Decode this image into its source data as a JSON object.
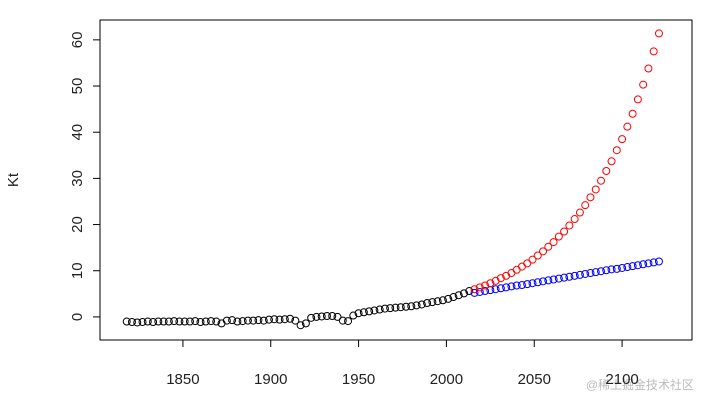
{
  "chart_data": {
    "type": "scatter",
    "y_label": "Kt",
    "xlim": [
      1802.8,
      2139.8
    ],
    "ylim": [
      -5,
      64.3
    ],
    "xticks": [
      1850,
      1900,
      1950,
      2000,
      2050,
      2100
    ],
    "yticks": [
      0,
      10,
      20,
      30,
      40,
      50,
      60
    ],
    "series": [
      {
        "color": "#000000",
        "x": [
          1818,
          1821,
          1824,
          1827,
          1830,
          1833,
          1836,
          1839,
          1842,
          1845,
          1848,
          1851,
          1854,
          1857,
          1860,
          1863,
          1866,
          1869,
          1872,
          1875,
          1878,
          1881,
          1884,
          1887,
          1890,
          1893,
          1896,
          1899,
          1902,
          1905,
          1908,
          1911,
          1914,
          1917,
          1920,
          1923,
          1926,
          1929,
          1932,
          1935,
          1938,
          1941,
          1944,
          1947,
          1950,
          1953,
          1956,
          1959,
          1962,
          1965,
          1968,
          1971,
          1974,
          1977,
          1980,
          1983,
          1986,
          1989,
          1992,
          1995,
          1998,
          2001,
          2004,
          2007,
          2010,
          2013
        ],
        "values": [
          -1.0,
          -1.1,
          -1.2,
          -1.1,
          -1.0,
          -1.1,
          -1.0,
          -1.0,
          -1.0,
          -0.9,
          -1.0,
          -1.0,
          -1.0,
          -0.9,
          -1.1,
          -1.0,
          -0.9,
          -1.0,
          -1.4,
          -0.8,
          -0.7,
          -1.0,
          -0.9,
          -0.8,
          -0.8,
          -0.7,
          -0.8,
          -0.6,
          -0.5,
          -0.6,
          -0.5,
          -0.4,
          -0.8,
          -1.8,
          -1.4,
          -0.2,
          0.0,
          0.1,
          0.2,
          0.2,
          0.0,
          -0.8,
          -0.9,
          0.3,
          0.8,
          1.0,
          1.2,
          1.4,
          1.6,
          1.8,
          1.9,
          2.0,
          2.1,
          2.2,
          2.3,
          2.5,
          2.7,
          3.0,
          3.2,
          3.4,
          3.6,
          3.9,
          4.3,
          4.7,
          5.1,
          5.6
        ]
      },
      {
        "color": "#0000ff",
        "x": [
          2016,
          2019,
          2022,
          2025,
          2028,
          2031,
          2034,
          2037,
          2040,
          2043,
          2046,
          2049,
          2052,
          2055,
          2058,
          2061,
          2064,
          2067,
          2070,
          2073,
          2076,
          2079,
          2082,
          2085,
          2088,
          2091,
          2094,
          2097,
          2100,
          2103,
          2106,
          2109,
          2112,
          2115,
          2118,
          2121
        ],
        "values": [
          5.2,
          5.4,
          5.6,
          5.8,
          6.0,
          6.2,
          6.4,
          6.6,
          6.8,
          6.9,
          7.1,
          7.3,
          7.5,
          7.7,
          7.9,
          8.1,
          8.3,
          8.5,
          8.7,
          8.9,
          9.1,
          9.3,
          9.5,
          9.7,
          9.9,
          10.1,
          10.3,
          10.4,
          10.6,
          10.8,
          11.0,
          11.2,
          11.4,
          11.6,
          11.8,
          12.0
        ]
      },
      {
        "color": "#ff0000",
        "x": [
          2016,
          2019,
          2022,
          2025,
          2028,
          2031,
          2034,
          2037,
          2040,
          2043,
          2046,
          2049,
          2052,
          2055,
          2058,
          2061,
          2064,
          2067,
          2070,
          2073,
          2076,
          2079,
          2082,
          2085,
          2088,
          2091,
          2094,
          2097,
          2100,
          2103,
          2106,
          2109,
          2112,
          2115,
          2118,
          2121
        ],
        "values": [
          6.0,
          6.4,
          6.8,
          7.3,
          7.8,
          8.4,
          8.9,
          9.5,
          10.2,
          10.9,
          11.6,
          12.4,
          13.3,
          14.2,
          15.2,
          16.2,
          17.4,
          18.5,
          19.8,
          21.2,
          22.6,
          24.2,
          25.9,
          27.6,
          29.5,
          31.6,
          33.7,
          36.1,
          38.5,
          41.2,
          44.0,
          47.1,
          50.3,
          53.8,
          57.5,
          61.4
        ]
      }
    ]
  },
  "watermark": "@稀土掘金技术社区"
}
